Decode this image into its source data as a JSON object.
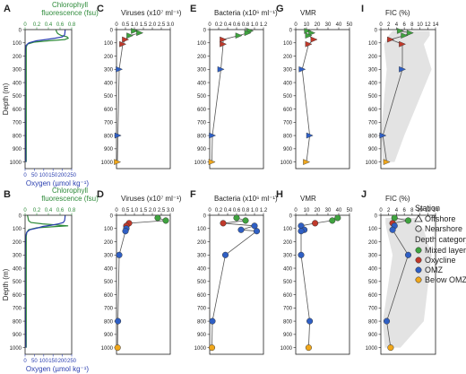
{
  "colors": {
    "chlorophyll": "#2e8b3a",
    "oxygen": "#2b3fb0",
    "mixed_layer": "#3fa33f",
    "oxycline": "#c0392b",
    "omz": "#2f5fc4",
    "below_omz": "#f0a71c",
    "band": "#e3e3e3",
    "line": "#555555"
  },
  "legend": {
    "station_title": "Station",
    "offshore": "Offshore",
    "nearshore": "Nearshore",
    "depth_title": "Depth category",
    "mixed": "Mixed layer",
    "oxycline": "Oxycline",
    "omz": "OMZ",
    "below": "Below OMZ"
  },
  "chart_data": [
    {
      "type": "line",
      "letter": "A",
      "station": "offshore",
      "chart_kind": "profile",
      "title_top": [
        "Chlorophyll",
        "fluorescence (fsu)"
      ],
      "xlabel_bottom": "Oxygen (µmol kg⁻¹)",
      "ylabel": "Depth (m)",
      "top_axis": {
        "ticks": [
          "0",
          "0.2",
          "0.4",
          "0.6",
          "0.8"
        ],
        "range": [
          0,
          0.8
        ]
      },
      "bottom_axis": {
        "ticks": [
          "0",
          "50",
          "100",
          "150",
          "200",
          "250"
        ],
        "range": [
          0,
          250
        ]
      },
      "y_ticks": [
        "0",
        "100",
        "200",
        "300",
        "400",
        "500",
        "600",
        "700",
        "800",
        "900",
        "1000"
      ],
      "ylim": [
        0,
        1050
      ],
      "series": [
        {
          "key": "chlorophyll",
          "depth": [
            0,
            15,
            30,
            45,
            55,
            65,
            75,
            85,
            95,
            110,
            130,
            150,
            200,
            300,
            400,
            500,
            600,
            700,
            800,
            900,
            1000
          ],
          "values": [
            0.53,
            0.54,
            0.56,
            0.62,
            0.72,
            0.74,
            0.68,
            0.4,
            0.15,
            0.04,
            0.02,
            0.02,
            0.02,
            0.02,
            0.02,
            0.02,
            0.02,
            0.02,
            0.02,
            0.02,
            0.02
          ],
          "axis": "top"
        },
        {
          "key": "oxygen",
          "depth": [
            0,
            20,
            40,
            55,
            65,
            75,
            85,
            100,
            120,
            150,
            200,
            300,
            400,
            600,
            800,
            1000
          ],
          "values": [
            215,
            214,
            212,
            200,
            160,
            110,
            60,
            20,
            5,
            2,
            1,
            1,
            1,
            1,
            2,
            4
          ],
          "axis": "bottom"
        }
      ]
    },
    {
      "type": "line",
      "letter": "C",
      "station": "offshore",
      "chart_kind": "scatter_profile",
      "title": "Viruses (x10⁷ ml⁻¹)",
      "x_ticks": [
        "0",
        "0.5",
        "1.0",
        "1.5",
        "2.0",
        "2.5",
        "3.0"
      ],
      "xlim": [
        0,
        3.0
      ],
      "y_ticks": [
        "0",
        "100",
        "200",
        "300",
        "400",
        "500",
        "600",
        "700",
        "800",
        "900",
        "1000"
      ],
      "ylim": [
        0,
        1050
      ],
      "points": [
        {
          "depth": 10,
          "value": 1.0,
          "cat": "mixed"
        },
        {
          "depth": 25,
          "value": 1.3,
          "cat": "mixed"
        },
        {
          "depth": 45,
          "value": 0.75,
          "cat": "mixed"
        },
        {
          "depth": 75,
          "value": 0.5,
          "cat": "oxycline"
        },
        {
          "depth": 110,
          "value": 0.35,
          "cat": "oxycline"
        },
        {
          "depth": 300,
          "value": 0.15,
          "cat": "omz"
        },
        {
          "depth": 800,
          "value": 0.08,
          "cat": "omz"
        },
        {
          "depth": 1000,
          "value": 0.05,
          "cat": "below"
        }
      ]
    },
    {
      "type": "line",
      "letter": "E",
      "station": "offshore",
      "chart_kind": "scatter_profile",
      "title": "Bacteria (x10⁶ ml⁻¹)",
      "x_ticks": [
        "0",
        "0.2",
        "0.4",
        "0.6",
        "0.8",
        "1.0",
        "1.2"
      ],
      "xlim": [
        0,
        1.2
      ],
      "y_ticks": [
        "0",
        "100",
        "200",
        "300",
        "400",
        "500",
        "600",
        "700",
        "800",
        "900",
        "1000"
      ],
      "ylim": [
        0,
        1050
      ],
      "points": [
        {
          "depth": 10,
          "value": 0.9,
          "cat": "mixed"
        },
        {
          "depth": 25,
          "value": 0.85,
          "cat": "mixed"
        },
        {
          "depth": 45,
          "value": 0.65,
          "cat": "mixed"
        },
        {
          "depth": 75,
          "value": 0.3,
          "cat": "oxycline"
        },
        {
          "depth": 110,
          "value": 0.3,
          "cat": "oxycline"
        },
        {
          "depth": 300,
          "value": 0.25,
          "cat": "omz"
        },
        {
          "depth": 800,
          "value": 0.06,
          "cat": "omz"
        },
        {
          "depth": 1000,
          "value": 0.05,
          "cat": "below"
        }
      ]
    },
    {
      "type": "line",
      "letter": "G",
      "station": "offshore",
      "chart_kind": "scatter_profile",
      "title": "VMR",
      "x_ticks": [
        "0",
        "10",
        "20",
        "30",
        "40",
        "50"
      ],
      "xlim": [
        0,
        50
      ],
      "y_ticks": [
        "0",
        "100",
        "200",
        "300",
        "400",
        "500",
        "600",
        "700",
        "800",
        "900",
        "1000"
      ],
      "ylim": [
        0,
        1050
      ],
      "points": [
        {
          "depth": 10,
          "value": 11,
          "cat": "mixed"
        },
        {
          "depth": 25,
          "value": 15,
          "cat": "mixed"
        },
        {
          "depth": 45,
          "value": 12,
          "cat": "mixed"
        },
        {
          "depth": 75,
          "value": 17,
          "cat": "oxycline"
        },
        {
          "depth": 110,
          "value": 12,
          "cat": "oxycline"
        },
        {
          "depth": 300,
          "value": 6,
          "cat": "omz"
        },
        {
          "depth": 800,
          "value": 13,
          "cat": "omz"
        },
        {
          "depth": 1000,
          "value": 10,
          "cat": "below"
        }
      ]
    },
    {
      "type": "line",
      "letter": "I",
      "station": "offshore",
      "chart_kind": "fic_profile",
      "title": "FIC (%)",
      "x_ticks": [
        "0",
        "2",
        "4",
        "6",
        "8",
        "10",
        "12",
        "14"
      ],
      "xlim": [
        0,
        14
      ],
      "y_ticks": [
        "0",
        "100",
        "200",
        "300",
        "400",
        "500",
        "600",
        "700",
        "800",
        "900",
        "1000"
      ],
      "ylim": [
        0,
        1050
      ],
      "band": {
        "depth": [
          10,
          45,
          110,
          300,
          800,
          1000
        ],
        "low": [
          3,
          2,
          0.8,
          1.5,
          0,
          0.5
        ],
        "high": [
          12.5,
          12.5,
          11,
          13,
          6,
          3.5
        ]
      },
      "points": [
        {
          "depth": 10,
          "value": 5,
          "cat": "mixed"
        },
        {
          "depth": 25,
          "value": 7.5,
          "cat": "mixed"
        },
        {
          "depth": 45,
          "value": 6,
          "cat": "mixed"
        },
        {
          "depth": 75,
          "value": 2.5,
          "cat": "oxycline"
        },
        {
          "depth": 110,
          "value": 5.5,
          "cat": "oxycline"
        },
        {
          "depth": 300,
          "value": 5.5,
          "cat": "omz"
        },
        {
          "depth": 800,
          "value": 0.5,
          "cat": "omz"
        },
        {
          "depth": 1000,
          "value": 1.5,
          "cat": "below"
        }
      ]
    },
    {
      "type": "line",
      "letter": "B",
      "station": "nearshore",
      "chart_kind": "profile",
      "title_top": [
        "Chlorophyll",
        "fluorescence (fsu)"
      ],
      "xlabel_bottom": "Oxygen (µmol kg⁻¹)",
      "ylabel": "Depth (m)",
      "top_axis": {
        "ticks": [
          "0",
          "0.2",
          "0.4",
          "0.6",
          "0.8"
        ],
        "range": [
          0,
          0.8
        ]
      },
      "bottom_axis": {
        "ticks": [
          "0",
          "50",
          "100",
          "150",
          "200",
          "250"
        ],
        "range": [
          0,
          250
        ]
      },
      "y_ticks": [
        "0",
        "100",
        "200",
        "300",
        "400",
        "500",
        "600",
        "700",
        "800",
        "900",
        "1000"
      ],
      "ylim": [
        0,
        1050
      ],
      "series": [
        {
          "key": "chlorophyll",
          "depth": [
            0,
            20,
            40,
            55,
            65,
            75,
            80,
            85,
            95,
            110,
            130,
            160,
            200,
            300,
            500,
            700,
            900,
            1000
          ],
          "values": [
            0.04,
            0.05,
            0.06,
            0.1,
            0.3,
            0.6,
            0.74,
            0.55,
            0.2,
            0.06,
            0.03,
            0.02,
            0.02,
            0.02,
            0.02,
            0.02,
            0.02,
            0.02
          ],
          "axis": "top"
        },
        {
          "key": "oxygen",
          "depth": [
            0,
            20,
            40,
            55,
            65,
            75,
            85,
            95,
            110,
            130,
            160,
            200,
            300,
            500,
            800,
            1000
          ],
          "values": [
            215,
            214,
            212,
            205,
            180,
            140,
            95,
            70,
            25,
            8,
            3,
            2,
            1,
            1,
            2,
            4
          ],
          "axis": "bottom"
        }
      ]
    },
    {
      "type": "line",
      "letter": "D",
      "station": "nearshore",
      "chart_kind": "scatter_profile",
      "title": "Viruses (x10⁷ ml⁻¹)",
      "x_ticks": [
        "0",
        "0.5",
        "1.0",
        "1.5",
        "2.0",
        "2.5",
        "3.0"
      ],
      "xlim": [
        0,
        3.0
      ],
      "y_ticks": [
        "0",
        "100",
        "200",
        "300",
        "400",
        "500",
        "600",
        "700",
        "800",
        "900",
        "1000"
      ],
      "ylim": [
        0,
        1050
      ],
      "points": [
        {
          "depth": 20,
          "value": 2.3,
          "cat": "mixed"
        },
        {
          "depth": 40,
          "value": 2.75,
          "cat": "mixed"
        },
        {
          "depth": 60,
          "value": 0.7,
          "cat": "oxycline"
        },
        {
          "depth": 80,
          "value": 0.55,
          "cat": "oxycline"
        },
        {
          "depth": 100,
          "value": 0.55,
          "cat": "omz"
        },
        {
          "depth": 120,
          "value": 0.5,
          "cat": "omz"
        },
        {
          "depth": 300,
          "value": 0.15,
          "cat": "omz"
        },
        {
          "depth": 800,
          "value": 0.08,
          "cat": "omz"
        },
        {
          "depth": 1000,
          "value": 0.06,
          "cat": "below"
        }
      ]
    },
    {
      "type": "line",
      "letter": "F",
      "station": "nearshore",
      "chart_kind": "scatter_profile",
      "title": "Bacteria (x10⁶ ml⁻¹)",
      "x_ticks": [
        "0",
        "0.2",
        "0.4",
        "0.6",
        "0.8",
        "1.0",
        "1.2"
      ],
      "xlim": [
        0,
        1.2
      ],
      "y_ticks": [
        "0",
        "100",
        "200",
        "300",
        "400",
        "500",
        "600",
        "700",
        "800",
        "900",
        "1000"
      ],
      "ylim": [
        0,
        1050
      ],
      "points": [
        {
          "depth": 20,
          "value": 0.6,
          "cat": "mixed"
        },
        {
          "depth": 40,
          "value": 0.8,
          "cat": "mixed"
        },
        {
          "depth": 60,
          "value": 0.3,
          "cat": "oxycline"
        },
        {
          "depth": 80,
          "value": 1.0,
          "cat": "omz"
        },
        {
          "depth": 110,
          "value": 0.7,
          "cat": "omz"
        },
        {
          "depth": 120,
          "value": 1.05,
          "cat": "omz"
        },
        {
          "depth": 300,
          "value": 0.35,
          "cat": "omz"
        },
        {
          "depth": 800,
          "value": 0.06,
          "cat": "omz"
        },
        {
          "depth": 1000,
          "value": 0.05,
          "cat": "below"
        }
      ]
    },
    {
      "type": "line",
      "letter": "H",
      "station": "nearshore",
      "chart_kind": "scatter_profile",
      "title": "VMR",
      "x_ticks": [
        "0",
        "10",
        "20",
        "30",
        "40",
        "50"
      ],
      "xlim": [
        0,
        50
      ],
      "y_ticks": [
        "0",
        "100",
        "200",
        "300",
        "400",
        "500",
        "600",
        "700",
        "800",
        "900",
        "1000"
      ],
      "ylim": [
        0,
        1050
      ],
      "points": [
        {
          "depth": 20,
          "value": 39,
          "cat": "mixed"
        },
        {
          "depth": 40,
          "value": 34,
          "cat": "mixed"
        },
        {
          "depth": 60,
          "value": 18,
          "cat": "oxycline"
        },
        {
          "depth": 80,
          "value": 5,
          "cat": "omz"
        },
        {
          "depth": 110,
          "value": 8,
          "cat": "omz"
        },
        {
          "depth": 120,
          "value": 5,
          "cat": "omz"
        },
        {
          "depth": 300,
          "value": 5,
          "cat": "omz"
        },
        {
          "depth": 800,
          "value": 13,
          "cat": "omz"
        },
        {
          "depth": 1000,
          "value": 12,
          "cat": "below"
        }
      ]
    },
    {
      "type": "line",
      "letter": "J",
      "station": "nearshore",
      "chart_kind": "fic_profile",
      "title": "FIC (%)",
      "x_ticks": [
        "0",
        "2",
        "4",
        "6",
        "8",
        "10",
        "12",
        "14"
      ],
      "xlim": [
        0,
        14
      ],
      "y_ticks": [
        "0",
        "100",
        "200",
        "300",
        "400",
        "500",
        "600",
        "700",
        "800",
        "900",
        "1000"
      ],
      "ylim": [
        0,
        1050
      ],
      "band": {
        "depth": [
          20,
          60,
          110,
          300,
          800,
          1000
        ],
        "low": [
          1.2,
          1.2,
          1.5,
          3,
          0.5,
          1
        ],
        "high": [
          9,
          9,
          11,
          13,
          11,
          5
        ]
      },
      "points": [
        {
          "depth": 20,
          "value": 3.5,
          "cat": "mixed"
        },
        {
          "depth": 40,
          "value": 7,
          "cat": "mixed"
        },
        {
          "depth": 60,
          "value": 3,
          "cat": "oxycline"
        },
        {
          "depth": 80,
          "value": 3.5,
          "cat": "omz"
        },
        {
          "depth": 110,
          "value": 3,
          "cat": "omz"
        },
        {
          "depth": 300,
          "value": 7,
          "cat": "omz"
        },
        {
          "depth": 800,
          "value": 1.5,
          "cat": "omz"
        },
        {
          "depth": 1000,
          "value": 2.5,
          "cat": "below"
        }
      ]
    }
  ]
}
